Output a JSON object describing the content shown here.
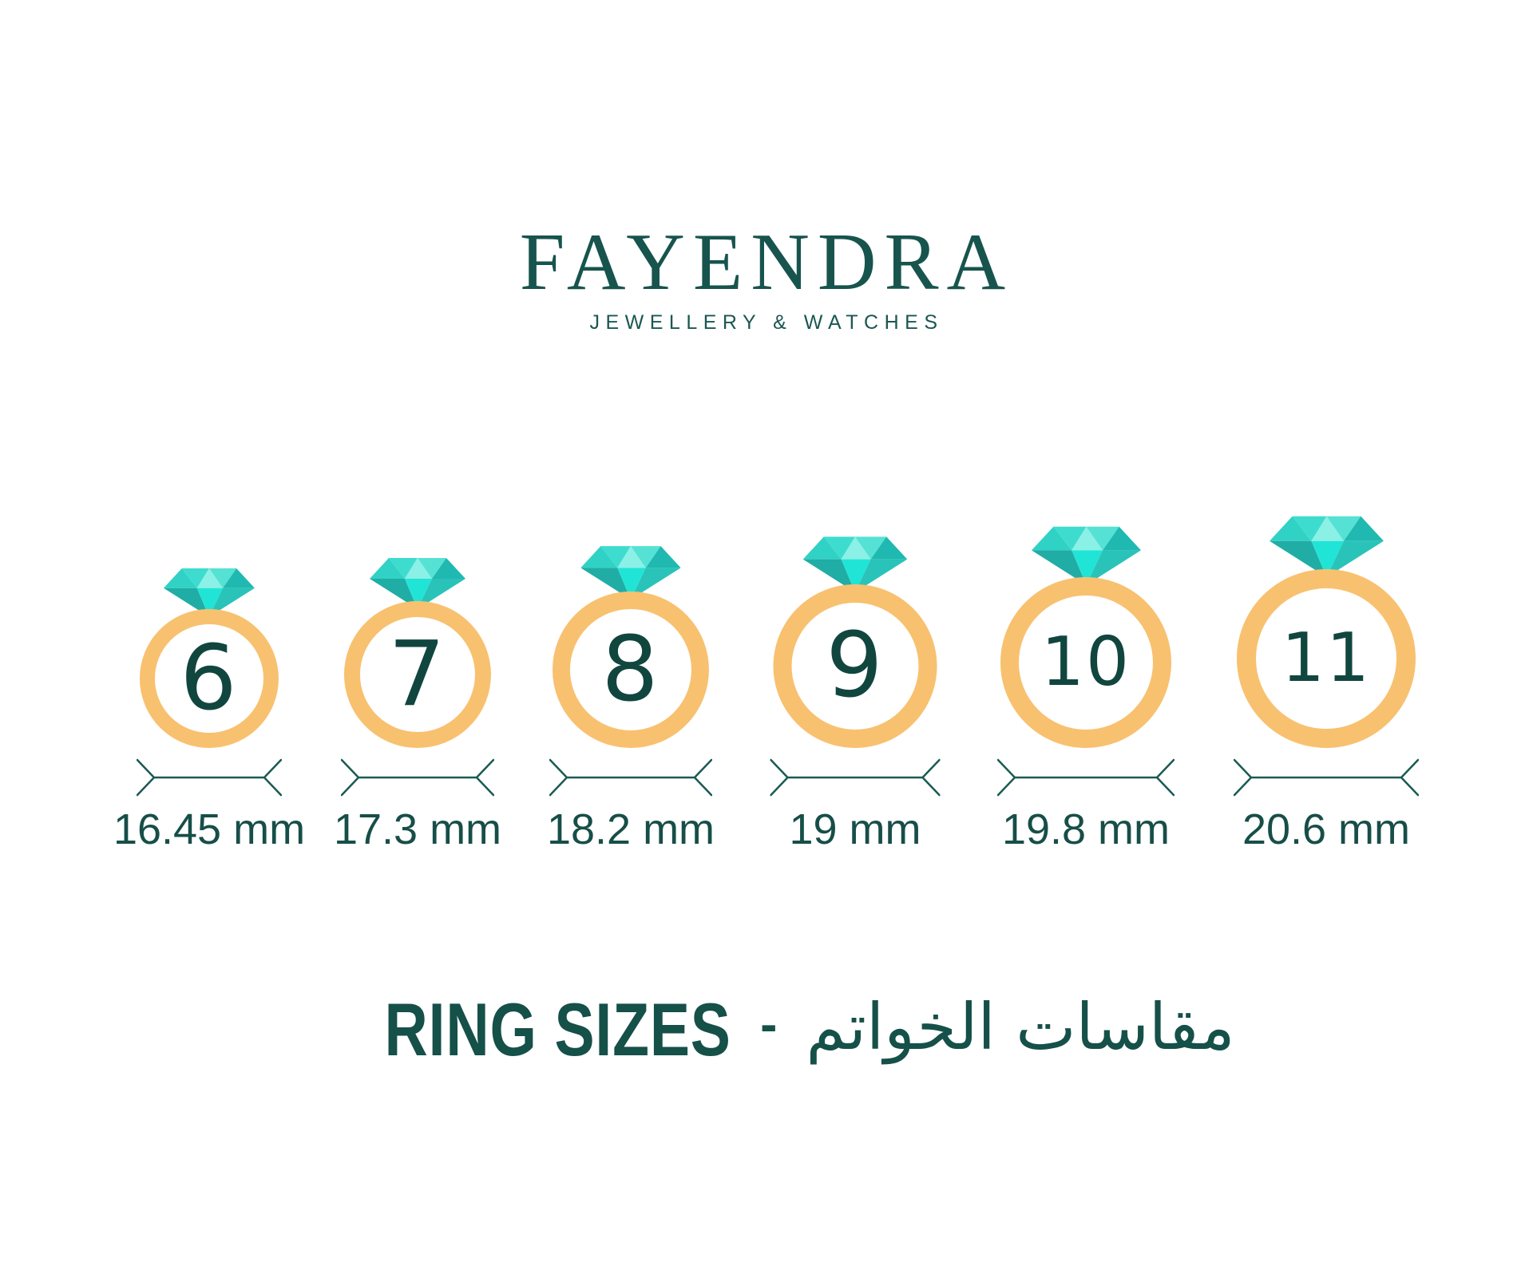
{
  "brand": {
    "name": "FAYENDRA",
    "tagline": "JEWELLERY & WATCHES"
  },
  "rings": [
    {
      "size": "6",
      "diameter_label": "16.45 mm"
    },
    {
      "size": "7",
      "diameter_label": "17.3 mm"
    },
    {
      "size": "8",
      "diameter_label": "18.2 mm"
    },
    {
      "size": "9",
      "diameter_label": "19 mm"
    },
    {
      "size": "10",
      "diameter_label": "19.8 mm"
    },
    {
      "size": "11",
      "diameter_label": "20.6 mm"
    }
  ],
  "footer": {
    "title_en": "RING SIZES",
    "separator": "-",
    "title_ar": "مقاسات الخواتم"
  },
  "colors": {
    "text_teal": "#174E48",
    "logo_teal": "#17544D",
    "band_orange": "#F8C170",
    "arrow_teal": "#1A5A53",
    "diamond": {
      "crown_left": "#30D2C5",
      "crown_upper_left": "#3EDCCF",
      "crown_center": "#8BF0E6",
      "crown_upper_right": "#55E2D5",
      "crown_right": "#1FB9B1",
      "pavilion_left": "#20ADA5",
      "pavilion_center": "#20E5D6",
      "pavilion_right": "#2AC3B9"
    }
  }
}
